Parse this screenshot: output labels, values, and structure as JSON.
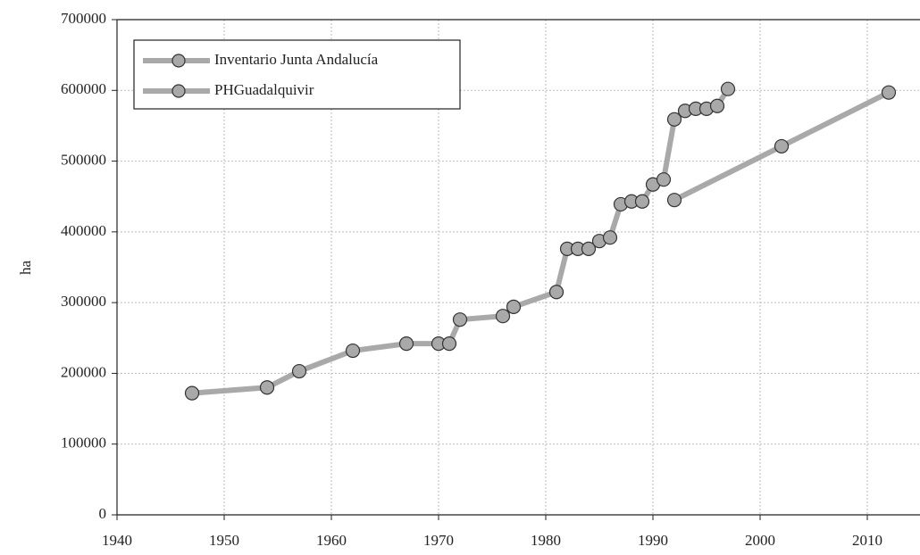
{
  "chart_data": {
    "type": "line",
    "ylabel": "ha",
    "xlim": [
      1940,
      2015
    ],
    "xticks": [
      1940,
      1950,
      1960,
      1970,
      1980,
      1990,
      2000,
      2010
    ],
    "ylim": [
      0,
      700000
    ],
    "yticks": [
      0,
      100000,
      200000,
      300000,
      400000,
      500000,
      600000,
      700000
    ],
    "grid": true,
    "legend": "upper left",
    "series": [
      {
        "name": "Inventario Junta Andalucía",
        "color": "#a9a9a9",
        "x": [
          1947,
          1954,
          1957,
          1962,
          1967,
          1970,
          1971,
          1972,
          1976,
          1977,
          1981,
          1982,
          1983,
          1984,
          1985,
          1986,
          1987,
          1988,
          1989,
          1990,
          1991,
          1992,
          1993,
          1994,
          1995,
          1996,
          1997
        ],
        "values": [
          172000,
          180000,
          203000,
          232000,
          242000,
          242000,
          242000,
          276000,
          281000,
          294000,
          315000,
          376000,
          376000,
          376000,
          387000,
          392000,
          439000,
          443000,
          443000,
          467000,
          474000,
          559000,
          571000,
          574000,
          574000,
          578000,
          602000
        ]
      },
      {
        "name": "PHGuadalquivir",
        "color": "#a9a9a9",
        "x": [
          1992,
          2002,
          2012
        ],
        "values": [
          445000,
          521000,
          597000
        ]
      }
    ]
  }
}
